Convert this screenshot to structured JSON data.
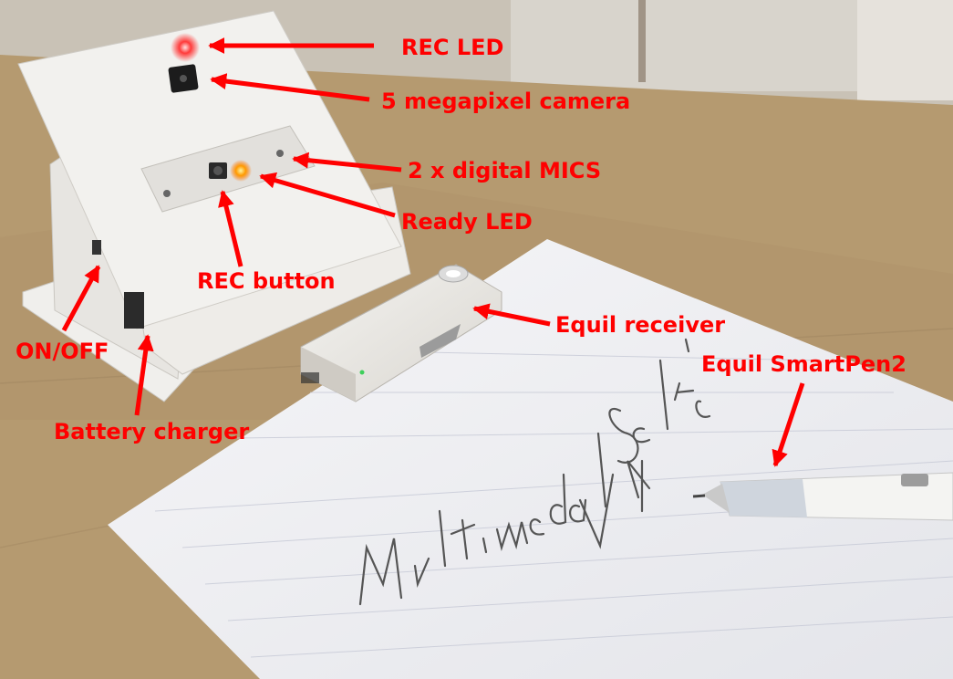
{
  "annotations": {
    "rec_led": "REC LED",
    "camera": "5 megapixel camera",
    "mics": "2 x digital MICS",
    "ready_led": "Ready LED",
    "rec_button": "REC button",
    "receiver": "Equil receiver",
    "on_off": "ON/OFF",
    "smartpen": "Equil SmartPen2",
    "charger": "Battery charger"
  },
  "handwriting": {
    "line1": "Multimodal Selfie",
    "line2": "V4"
  },
  "colors": {
    "annotation": "#ff0000",
    "table": "#b59a70",
    "paper": "#f3f3f5",
    "device": "#eceae6"
  }
}
